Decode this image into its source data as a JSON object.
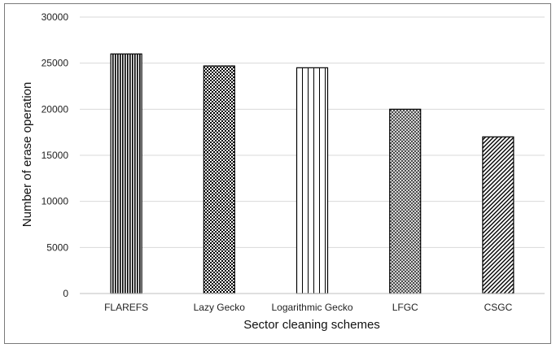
{
  "chart_data": {
    "type": "bar",
    "categories": [
      "FLAREFS",
      "Lazy Gecko",
      "Logarithmic Gecko",
      "LFGC",
      "CSGC"
    ],
    "values": [
      26000,
      24700,
      24500,
      20000,
      17000
    ],
    "title": "",
    "xlabel": "Sector cleaning schemes",
    "ylabel": "Number of erase operation",
    "ylim": [
      0,
      30000
    ],
    "yticks": [
      0,
      5000,
      10000,
      15000,
      20000,
      25000,
      30000
    ],
    "grid": true,
    "bar_patterns": [
      "vertical-dense",
      "checker-fine",
      "vertical-sparse",
      "crosshatch",
      "diagonal"
    ],
    "colors": {
      "bar_stroke": "#000000",
      "grid": "#d9d9d9",
      "axis": "#bfbfbf",
      "frame": "#7a7a7a"
    }
  }
}
